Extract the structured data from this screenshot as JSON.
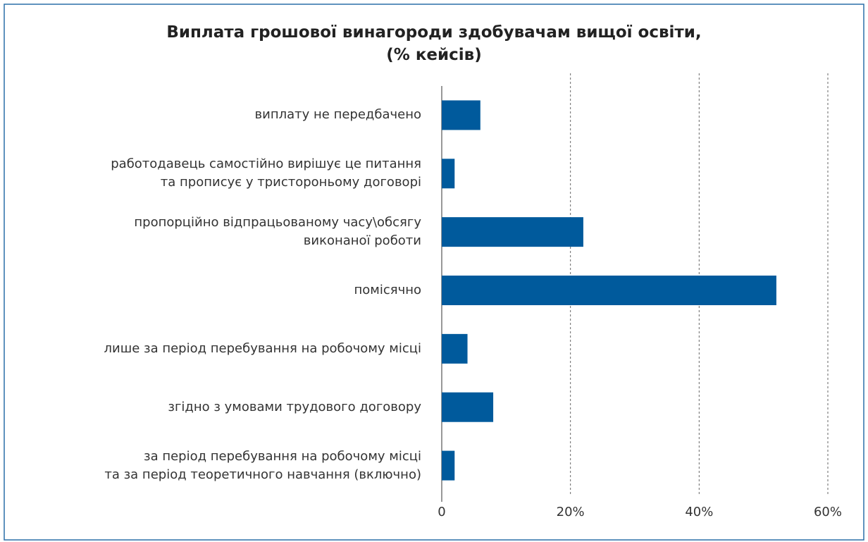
{
  "chart_data": {
    "type": "bar",
    "orientation": "horizontal",
    "title": "Виплата грошової винагороди здобувачам вищої освіти,\n(% кейсів)",
    "categories": [
      "виплату не передбачено",
      "работодавець самостійно вирішує це питання\nта прописує у тристороньому договорі",
      "пропорційно відпрацьованому часу\\обсягу\nвиконаної роботи",
      "помісячно",
      "лише за період перебування на робочому місці",
      "згідно з умовами трудового договору",
      "за період перебування на робочому місці \nта за період теоретичного навчання (включно)"
    ],
    "values": [
      6,
      2,
      22,
      52,
      4,
      8,
      2
    ],
    "color": "#005a9c",
    "xlim": [
      0,
      60
    ],
    "xticks": [
      0,
      {
        "value": 20,
        "label": "20%"
      },
      {
        "value": 40,
        "label": "40%"
      },
      {
        "value": 60,
        "label": "60%"
      }
    ],
    "grid": true
  }
}
